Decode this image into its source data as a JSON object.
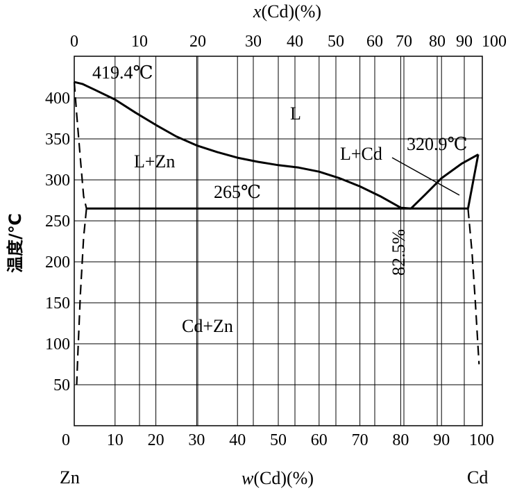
{
  "chart_data": {
    "type": "line",
    "title": "",
    "x_top_label": {
      "var": "x",
      "rest": "(Cd)(%)"
    },
    "x_bottom_label": {
      "var": "w",
      "rest": "(Cd)(%)"
    },
    "ylabel": "温度/℃",
    "xlim": [
      0,
      100
    ],
    "ylim": [
      0,
      450
    ],
    "bottom_ticks": [
      "0",
      "10",
      "20",
      "30",
      "40",
      "50",
      "60",
      "70",
      "80",
      "90",
      "100"
    ],
    "top_ticks": [
      "0",
      "10",
      "20",
      "30",
      "40",
      "50",
      "60",
      "70",
      "80",
      "90",
      "100"
    ],
    "y_ticks": [
      "50",
      "100",
      "150",
      "200",
      "250",
      "300",
      "350",
      "400"
    ],
    "grid": true,
    "end_labels": {
      "left": "Zn",
      "right": "Cd"
    },
    "phase_labels": {
      "liquid": "L",
      "l_zn": "L+Zn",
      "l_cd": "L+Cd",
      "solid": "Cd+Zn"
    },
    "annotations": {
      "zn_melting": "419.4℃",
      "cd_melting": "320.9℃",
      "eutectic_temp": "265℃",
      "eutectic_comp": "82.5%"
    },
    "series": [
      {
        "style": "solid",
        "x": [
          0,
          2,
          5,
          10,
          15,
          20,
          25,
          30,
          35,
          40,
          45,
          50,
          55,
          60,
          65,
          70,
          75,
          80,
          82.5
        ],
        "y": [
          419.4,
          417,
          410,
          398,
          382,
          367,
          353,
          342,
          334,
          327,
          322,
          318,
          315,
          310,
          302,
          292,
          280,
          266,
          265
        ]
      },
      {
        "style": "solid",
        "x": [
          82.5,
          86,
          90,
          95,
          99
        ],
        "y": [
          265,
          282,
          302,
          320,
          331
        ]
      },
      {
        "style": "solid",
        "x": [
          3,
          96.5
        ],
        "y": [
          265,
          265
        ]
      },
      {
        "style": "solid",
        "x": [
          96.5,
          99
        ],
        "y": [
          265,
          331
        ]
      },
      {
        "style": "dashed",
        "x": [
          0,
          0.6,
          1.6,
          2.3,
          3
        ],
        "y": [
          419.4,
          380,
          320,
          280,
          265
        ]
      },
      {
        "style": "dashed",
        "x": [
          3,
          2.3,
          1.5,
          0.9,
          0.6
        ],
        "y": [
          265,
          230,
          160,
          90,
          50
        ]
      },
      {
        "style": "dashed",
        "x": [
          96.5,
          97.5,
          98.3,
          98.9,
          99.2
        ],
        "y": [
          265,
          210,
          150,
          100,
          75
        ]
      }
    ]
  }
}
